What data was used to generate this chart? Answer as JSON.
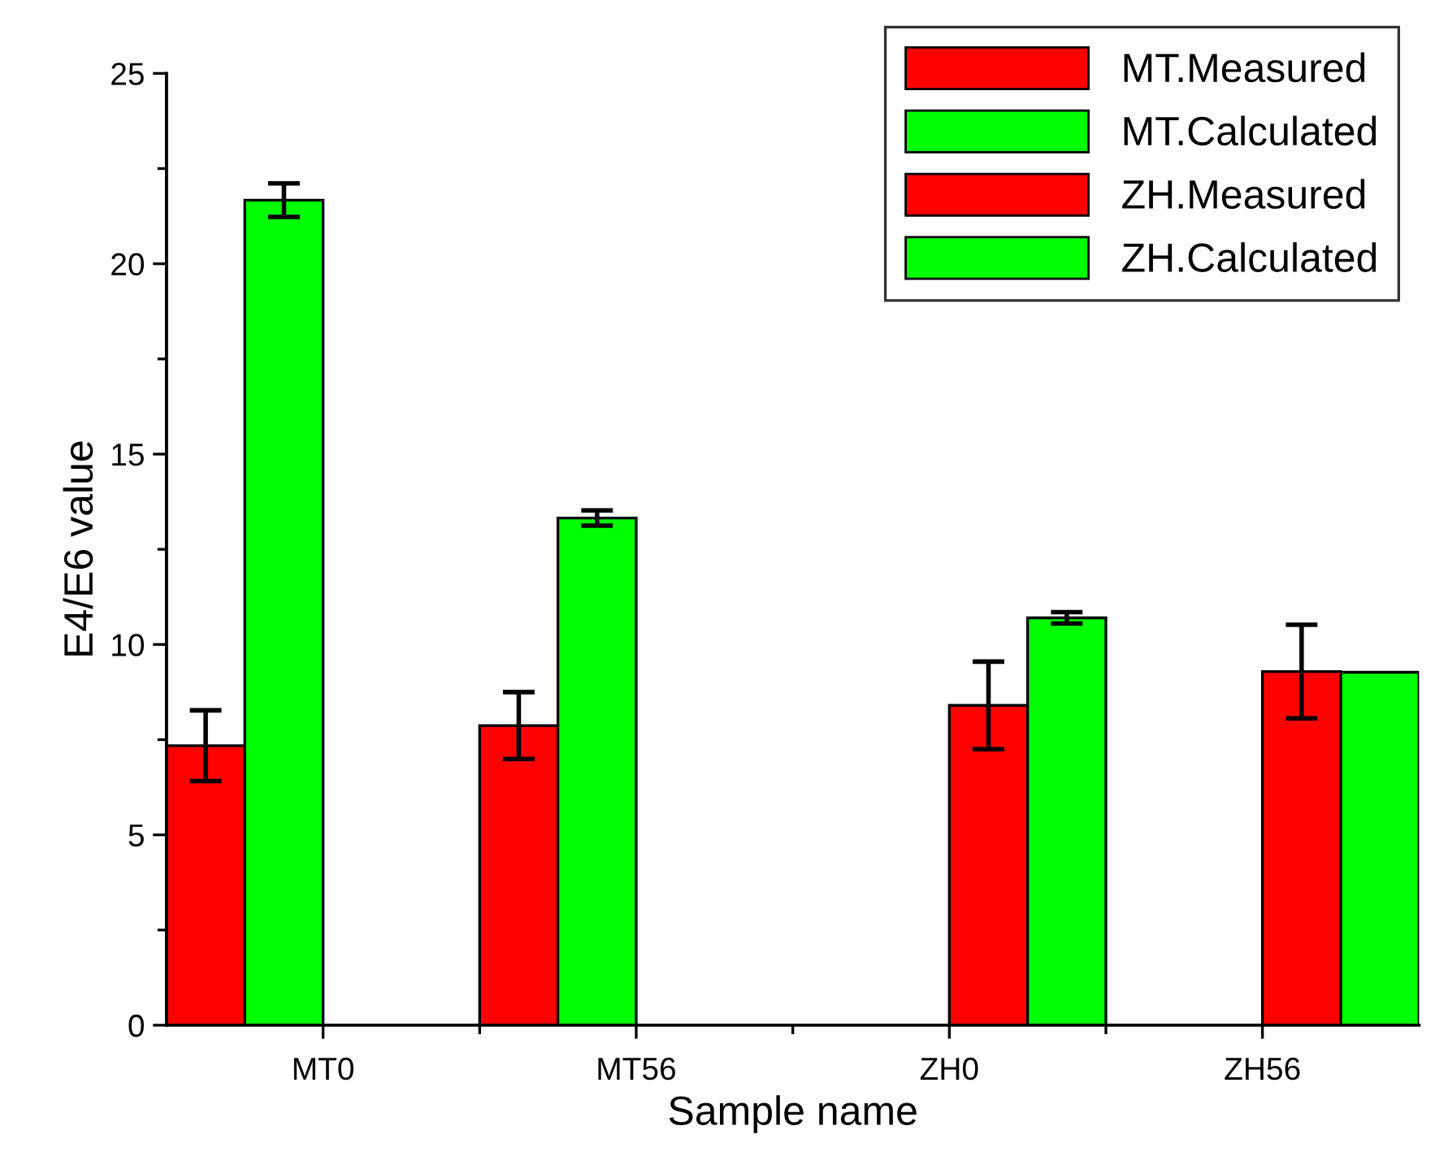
{
  "chart_data": {
    "type": "bar",
    "xlabel": "Sample name",
    "ylabel": "E4/E6 value",
    "categories": [
      "MT0",
      "MT56",
      "ZH0",
      "ZH56"
    ],
    "series": [
      {
        "name": "MT.Measured",
        "color": "#ff0000",
        "values": [
          7.34,
          7.87,
          null,
          null
        ],
        "errors": [
          0.93,
          0.88,
          null,
          null
        ]
      },
      {
        "name": "MT.Calculated",
        "color": "#00ff00",
        "values": [
          21.67,
          13.32,
          null,
          null
        ],
        "errors": [
          0.44,
          0.2,
          null,
          null
        ]
      },
      {
        "name": "ZH.Measured",
        "color": "#ff0000",
        "values": [
          null,
          null,
          8.4,
          9.29
        ],
        "errors": [
          null,
          null,
          1.15,
          1.23
        ]
      },
      {
        "name": "ZH.Calculated",
        "color": "#00ff00",
        "values": [
          null,
          null,
          10.7,
          9.27
        ],
        "errors": [
          null,
          null,
          0.15,
          null
        ]
      }
    ],
    "ylim": [
      0,
      25
    ],
    "yticks": [
      0,
      5,
      10,
      15,
      20,
      25
    ],
    "grid": false,
    "legend": "top right"
  }
}
